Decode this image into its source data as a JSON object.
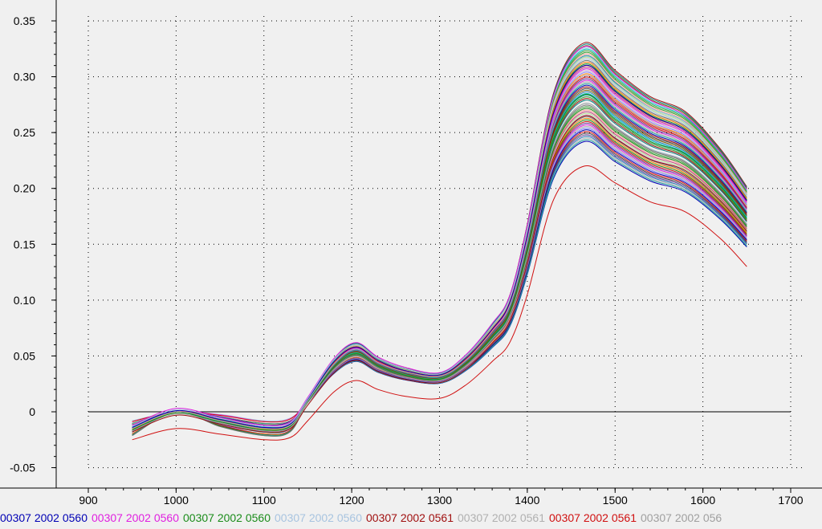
{
  "chart_data": {
    "type": "line",
    "title": "",
    "xlabel": "",
    "ylabel": "",
    "xlim": [
      900,
      1700
    ],
    "ylim": [
      -0.05,
      0.35
    ],
    "x_ticks": [
      "900",
      "1000",
      "1100",
      "1200",
      "1300",
      "1400",
      "1500",
      "1600",
      "1700"
    ],
    "y_ticks": [
      "0.35",
      "0.30",
      "0.25",
      "0.20",
      "0.15",
      "0.10",
      "0.05",
      "0",
      "-0.05"
    ],
    "grid": "dotted",
    "zero_line": true,
    "legend_position": "bottom",
    "x": [
      950,
      1000,
      1050,
      1100,
      1130,
      1150,
      1180,
      1205,
      1230,
      1260,
      1300,
      1330,
      1360,
      1380,
      1400,
      1430,
      1465,
      1500,
      1540,
      1580,
      1620,
      1650
    ],
    "template": [
      -0.015,
      0.0,
      -0.008,
      -0.015,
      -0.012,
      0.01,
      0.042,
      0.055,
      0.043,
      0.035,
      0.031,
      0.045,
      0.07,
      0.093,
      0.15,
      0.255,
      0.295,
      0.273,
      0.252,
      0.24,
      0.21,
      0.18
    ],
    "series_count": 60,
    "series": [
      {
        "name": "00307 2002 0560",
        "color": "#0000b4",
        "values": [
          -0.014,
          0.001,
          -0.007,
          -0.014,
          -0.011,
          0.011,
          0.045,
          0.058,
          0.046,
          0.037,
          0.033,
          0.048,
          0.074,
          0.098,
          0.158,
          0.268,
          0.31,
          0.287,
          0.265,
          0.252,
          0.221,
          0.189
        ]
      },
      {
        "name": "00307 2002 0560",
        "color": "#e020e0",
        "values": [
          -0.012,
          0.003,
          -0.005,
          -0.012,
          -0.009,
          0.013,
          0.048,
          0.062,
          0.049,
          0.04,
          0.035,
          0.051,
          0.079,
          0.104,
          0.167,
          0.283,
          0.327,
          0.302,
          0.279,
          0.265,
          0.232,
          0.199
        ]
      },
      {
        "name": "00307 2002 0560",
        "color": "#1a8c1a",
        "values": [
          -0.016,
          -0.001,
          -0.009,
          -0.016,
          -0.013,
          0.009,
          0.04,
          0.052,
          0.041,
          0.033,
          0.029,
          0.043,
          0.067,
          0.089,
          0.144,
          0.245,
          0.284,
          0.262,
          0.242,
          0.231,
          0.202,
          0.173
        ]
      },
      {
        "name": "00307 2002 0560",
        "color": "#a8c4e0",
        "values": [
          -0.013,
          0.002,
          -0.006,
          -0.013,
          -0.01,
          0.012,
          0.047,
          0.06,
          0.048,
          0.039,
          0.034,
          0.05,
          0.077,
          0.101,
          0.162,
          0.275,
          0.318,
          0.294,
          0.272,
          0.259,
          0.227,
          0.194
        ]
      },
      {
        "name": "00307 2002 0561",
        "color": "#a01010",
        "values": [
          -0.018,
          -0.003,
          -0.011,
          -0.018,
          -0.015,
          0.006,
          0.035,
          0.046,
          0.036,
          0.029,
          0.026,
          0.038,
          0.061,
          0.081,
          0.133,
          0.228,
          0.265,
          0.245,
          0.226,
          0.216,
          0.189,
          0.162
        ]
      },
      {
        "name": "00307 2002 0561",
        "color": "#b0b0b0",
        "values": [
          -0.015,
          0.0,
          -0.008,
          -0.015,
          -0.012,
          0.01,
          0.043,
          0.056,
          0.044,
          0.036,
          0.032,
          0.046,
          0.072,
          0.095,
          0.153,
          0.26,
          0.301,
          0.279,
          0.258,
          0.245,
          0.215,
          0.184
        ]
      },
      {
        "name": "00307 2002 0561",
        "color": "#d01010",
        "values": [
          -0.025,
          -0.015,
          -0.02,
          -0.025,
          -0.023,
          -0.008,
          0.018,
          0.028,
          0.02,
          0.014,
          0.012,
          0.024,
          0.045,
          0.062,
          0.105,
          0.19,
          0.22,
          0.205,
          0.188,
          0.179,
          0.155,
          0.13
        ]
      },
      {
        "name": "00307 2002 056",
        "color": "#a0a0a0",
        "values": [
          -0.017,
          -0.002,
          -0.01,
          -0.017,
          -0.014,
          0.008,
          0.038,
          0.05,
          0.039,
          0.031,
          0.028,
          0.041,
          0.065,
          0.086,
          0.14,
          0.238,
          0.276,
          0.255,
          0.235,
          0.224,
          0.196,
          0.168
        ]
      }
    ]
  }
}
